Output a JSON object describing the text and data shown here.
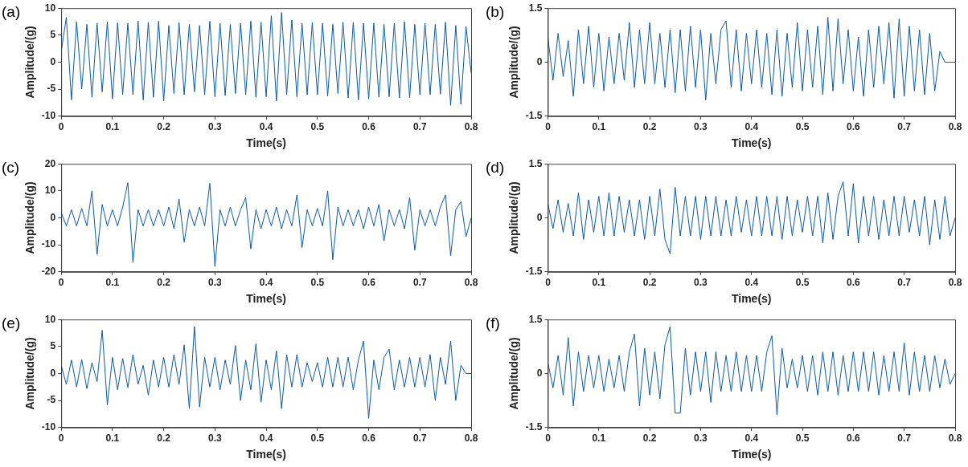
{
  "chart_data": [
    {
      "type": "line",
      "title": "(a)",
      "xlabel": "Time(s)",
      "ylabel": "Amplitude/(g)",
      "marker": "none",
      "xlim": [
        0,
        0.8
      ],
      "xticks": [
        0,
        0.1,
        0.2,
        0.3,
        0.4,
        0.5,
        0.6,
        0.7,
        0.8
      ],
      "ylim": [
        -10,
        10
      ],
      "yticks": [
        -10,
        -5,
        0,
        5,
        10
      ],
      "x": [
        0,
        0.01,
        0.02,
        0.03,
        0.04,
        0.05,
        0.06,
        0.07,
        0.08,
        0.09,
        0.1,
        0.11,
        0.12,
        0.13,
        0.14,
        0.15,
        0.16,
        0.17,
        0.18,
        0.19,
        0.2,
        0.21,
        0.22,
        0.23,
        0.24,
        0.25,
        0.26,
        0.27,
        0.28,
        0.29,
        0.3,
        0.31,
        0.32,
        0.33,
        0.34,
        0.35,
        0.36,
        0.37,
        0.38,
        0.39,
        0.4,
        0.41,
        0.42,
        0.43,
        0.44,
        0.45,
        0.46,
        0.47,
        0.48,
        0.49,
        0.5,
        0.51,
        0.52,
        0.53,
        0.54,
        0.55,
        0.56,
        0.57,
        0.58,
        0.59,
        0.6,
        0.61,
        0.62,
        0.63,
        0.64,
        0.65,
        0.66,
        0.67,
        0.68,
        0.69,
        0.7,
        0.71,
        0.72,
        0.73,
        0.74,
        0.75,
        0.76,
        0.77,
        0.78,
        0.79,
        0.8
      ],
      "series": [
        {
          "color": "#0b5aa6",
          "values": [
            2,
            8.3,
            -7,
            7.5,
            -5,
            7,
            -6.5,
            7.2,
            -5.5,
            7.5,
            -6.8,
            7.3,
            -6,
            7.2,
            -6,
            7.6,
            -7,
            7.4,
            -6.5,
            7.6,
            -7.2,
            6.8,
            -5.8,
            7.3,
            -6,
            7,
            -5.5,
            6.8,
            -6,
            7.6,
            -6.4,
            7.2,
            -6.2,
            7,
            -5.8,
            7.2,
            -6,
            7.6,
            -6.5,
            7.4,
            -6.4,
            8.6,
            -7.2,
            9.2,
            -6,
            7.8,
            -6.4,
            7.2,
            -6,
            7.3,
            -6,
            7.2,
            -6.3,
            7,
            -5.8,
            7.4,
            -6.6,
            7.4,
            -7,
            7.2,
            -6.8,
            7.2,
            -6.5,
            7,
            -6.4,
            7.2,
            -6.6,
            7.5,
            -6.6,
            7,
            -6,
            7.2,
            -6,
            7,
            -5.9,
            7.4,
            -8,
            6.8,
            -7.8,
            6.6,
            -2
          ]
        }
      ]
    },
    {
      "type": "line",
      "title": "(b)",
      "xlabel": "Time(s)",
      "ylabel": "Amplitude/(g)",
      "marker": "none",
      "xlim": [
        0,
        0.8
      ],
      "xticks": [
        0,
        0.1,
        0.2,
        0.3,
        0.4,
        0.5,
        0.6,
        0.7,
        0.8
      ],
      "ylim": [
        -1.5,
        1.5
      ],
      "yticks": [
        -1.5,
        0,
        1.5
      ],
      "x": [
        0,
        0.01,
        0.02,
        0.03,
        0.04,
        0.05,
        0.06,
        0.07,
        0.08,
        0.09,
        0.1,
        0.11,
        0.12,
        0.13,
        0.14,
        0.15,
        0.16,
        0.17,
        0.18,
        0.19,
        0.2,
        0.21,
        0.22,
        0.23,
        0.24,
        0.25,
        0.26,
        0.27,
        0.28,
        0.29,
        0.3,
        0.31,
        0.32,
        0.33,
        0.34,
        0.35,
        0.36,
        0.37,
        0.38,
        0.39,
        0.4,
        0.41,
        0.42,
        0.43,
        0.44,
        0.45,
        0.46,
        0.47,
        0.48,
        0.49,
        0.5,
        0.51,
        0.52,
        0.53,
        0.54,
        0.55,
        0.56,
        0.57,
        0.58,
        0.59,
        0.6,
        0.61,
        0.62,
        0.63,
        0.64,
        0.65,
        0.66,
        0.67,
        0.68,
        0.69,
        0.7,
        0.71,
        0.72,
        0.73,
        0.74,
        0.75,
        0.76,
        0.77,
        0.78,
        0.79,
        0.8
      ],
      "series": [
        {
          "color": "#0b5aa6",
          "values": [
            0.7,
            -0.5,
            0.8,
            -0.4,
            0.6,
            -0.95,
            0.9,
            -0.6,
            1.0,
            -0.7,
            0.8,
            -0.8,
            0.7,
            -0.6,
            0.8,
            -0.5,
            1.1,
            -0.7,
            0.9,
            -0.6,
            1.1,
            -0.6,
            0.8,
            -0.7,
            0.9,
            -0.85,
            0.9,
            -0.8,
            1.0,
            -0.7,
            0.9,
            -1.05,
            0.8,
            -0.6,
            0.9,
            1.15,
            -0.7,
            0.9,
            -0.8,
            0.8,
            -0.6,
            0.9,
            -0.7,
            0.8,
            -0.9,
            0.9,
            -0.95,
            0.8,
            -0.7,
            1.1,
            -0.8,
            0.9,
            -0.7,
            1.0,
            -0.9,
            1.25,
            -0.8,
            1.2,
            -0.6,
            0.9,
            -0.8,
            0.7,
            -0.95,
            0.9,
            -0.7,
            1.0,
            -0.6,
            1.1,
            -1.0,
            1.2,
            -0.95,
            1.0,
            -0.8,
            0.9,
            -0.9,
            0.8,
            -0.8,
            0.3,
            0,
            0,
            0
          ]
        }
      ]
    },
    {
      "type": "line",
      "title": "(c)",
      "xlabel": "Time(s)",
      "ylabel": "Amplitude/(g)",
      "marker": "none",
      "xlim": [
        0,
        0.8
      ],
      "xticks": [
        0,
        0.1,
        0.2,
        0.3,
        0.4,
        0.5,
        0.6,
        0.7,
        0.8
      ],
      "ylim": [
        -20,
        20
      ],
      "yticks": [
        -20,
        -10,
        0,
        10,
        20
      ],
      "x": [
        0,
        0.01,
        0.02,
        0.03,
        0.04,
        0.05,
        0.06,
        0.07,
        0.08,
        0.09,
        0.1,
        0.11,
        0.12,
        0.13,
        0.14,
        0.15,
        0.16,
        0.17,
        0.18,
        0.19,
        0.2,
        0.21,
        0.22,
        0.23,
        0.24,
        0.25,
        0.26,
        0.27,
        0.28,
        0.29,
        0.3,
        0.31,
        0.32,
        0.33,
        0.34,
        0.35,
        0.36,
        0.37,
        0.38,
        0.39,
        0.4,
        0.41,
        0.42,
        0.43,
        0.44,
        0.45,
        0.46,
        0.47,
        0.48,
        0.49,
        0.5,
        0.51,
        0.52,
        0.53,
        0.54,
        0.55,
        0.56,
        0.57,
        0.58,
        0.59,
        0.6,
        0.61,
        0.62,
        0.63,
        0.64,
        0.65,
        0.66,
        0.67,
        0.68,
        0.69,
        0.7,
        0.71,
        0.72,
        0.73,
        0.74,
        0.75,
        0.76,
        0.77,
        0.78,
        0.79,
        0.8
      ],
      "series": [
        {
          "color": "#0b5aa6",
          "values": [
            2,
            -3,
            3,
            -3,
            3.5,
            -3,
            10,
            -13.5,
            5,
            -3,
            3,
            -3,
            4,
            13,
            -16.5,
            3,
            -3,
            3,
            -3,
            3,
            -3,
            4,
            -4,
            7,
            -9,
            3,
            -3,
            4,
            -3,
            12.8,
            -18,
            3,
            -3,
            4,
            -3,
            3,
            7.5,
            -11.5,
            3,
            -4,
            3,
            -3,
            4,
            -4,
            3,
            -3,
            8.5,
            -11,
            3,
            -3,
            3.5,
            -3,
            10,
            -15.5,
            4,
            -3,
            3,
            -3,
            3,
            -4,
            4,
            -3,
            5,
            -8.5,
            3,
            -3,
            3,
            -4,
            7.5,
            -12,
            3,
            -3,
            3,
            -3,
            4,
            8.5,
            -14,
            3,
            6,
            -7,
            0
          ]
        }
      ]
    },
    {
      "type": "line",
      "title": "(d)",
      "xlabel": "Time(s)",
      "ylabel": "Amplitude/(g)",
      "marker": "none",
      "xlim": [
        0,
        0.8
      ],
      "xticks": [
        0,
        0.1,
        0.2,
        0.3,
        0.4,
        0.5,
        0.6,
        0.7,
        0.8
      ],
      "ylim": [
        -1.5,
        1.5
      ],
      "yticks": [
        -1.5,
        0,
        1.5
      ],
      "x": [
        0,
        0.01,
        0.02,
        0.03,
        0.04,
        0.05,
        0.06,
        0.07,
        0.08,
        0.09,
        0.1,
        0.11,
        0.12,
        0.13,
        0.14,
        0.15,
        0.16,
        0.17,
        0.18,
        0.19,
        0.2,
        0.21,
        0.22,
        0.23,
        0.24,
        0.25,
        0.26,
        0.27,
        0.28,
        0.29,
        0.3,
        0.31,
        0.32,
        0.33,
        0.34,
        0.35,
        0.36,
        0.37,
        0.38,
        0.39,
        0.4,
        0.41,
        0.42,
        0.43,
        0.44,
        0.45,
        0.46,
        0.47,
        0.48,
        0.49,
        0.5,
        0.51,
        0.52,
        0.53,
        0.54,
        0.55,
        0.56,
        0.57,
        0.58,
        0.59,
        0.6,
        0.61,
        0.62,
        0.63,
        0.64,
        0.65,
        0.66,
        0.67,
        0.68,
        0.69,
        0.7,
        0.71,
        0.72,
        0.73,
        0.74,
        0.75,
        0.76,
        0.77,
        0.78,
        0.79,
        0.8
      ],
      "series": [
        {
          "color": "#0b5aa6",
          "values": [
            0.4,
            -0.3,
            0.5,
            -0.4,
            0.4,
            -0.5,
            0.7,
            -0.6,
            0.5,
            -0.4,
            0.6,
            -0.5,
            0.7,
            -0.5,
            0.6,
            -0.4,
            0.5,
            -0.5,
            0.5,
            -0.6,
            0.6,
            -0.5,
            0.8,
            -0.6,
            -1.0,
            0.85,
            -0.5,
            0.6,
            -0.5,
            0.6,
            -0.6,
            0.6,
            -0.5,
            0.6,
            -0.5,
            0.5,
            -0.5,
            0.6,
            -0.4,
            0.5,
            -0.5,
            0.6,
            -0.5,
            0.6,
            -0.5,
            0.6,
            -0.6,
            0.6,
            -0.5,
            0.5,
            -0.4,
            0.6,
            -0.5,
            0.6,
            -0.7,
            0.7,
            -0.6,
            0.6,
            1.0,
            -0.5,
            0.95,
            -0.7,
            0.6,
            -0.5,
            0.6,
            -0.6,
            0.5,
            -0.5,
            0.6,
            -0.5,
            0.6,
            -0.4,
            0.5,
            -0.5,
            0.6,
            -0.75,
            0.5,
            -0.6,
            0.6,
            -0.5,
            0
          ]
        }
      ]
    },
    {
      "type": "line",
      "title": "(e)",
      "xlabel": "Time(s)",
      "ylabel": "Amplitude/(g)",
      "marker": "none",
      "xlim": [
        0,
        0.8
      ],
      "xticks": [
        0,
        0.1,
        0.2,
        0.3,
        0.4,
        0.5,
        0.6,
        0.7,
        0.8
      ],
      "ylim": [
        -10,
        10
      ],
      "yticks": [
        -10,
        -5,
        0,
        5,
        10
      ],
      "x": [
        0,
        0.01,
        0.02,
        0.03,
        0.04,
        0.05,
        0.06,
        0.07,
        0.08,
        0.09,
        0.1,
        0.11,
        0.12,
        0.13,
        0.14,
        0.15,
        0.16,
        0.17,
        0.18,
        0.19,
        0.2,
        0.21,
        0.22,
        0.23,
        0.24,
        0.25,
        0.26,
        0.27,
        0.28,
        0.29,
        0.3,
        0.31,
        0.32,
        0.33,
        0.34,
        0.35,
        0.36,
        0.37,
        0.38,
        0.39,
        0.4,
        0.41,
        0.42,
        0.43,
        0.44,
        0.45,
        0.46,
        0.47,
        0.48,
        0.49,
        0.5,
        0.51,
        0.52,
        0.53,
        0.54,
        0.55,
        0.56,
        0.57,
        0.58,
        0.59,
        0.6,
        0.61,
        0.62,
        0.63,
        0.64,
        0.65,
        0.66,
        0.67,
        0.68,
        0.69,
        0.7,
        0.71,
        0.72,
        0.73,
        0.74,
        0.75,
        0.76,
        0.77,
        0.78,
        0.79,
        0.8
      ],
      "series": [
        {
          "color": "#0b5aa6",
          "values": [
            1.5,
            -2,
            2.5,
            -2.5,
            2.6,
            -2.8,
            2,
            -1.5,
            8,
            -5.8,
            3,
            -3,
            2.8,
            -2.6,
            3.5,
            -2,
            1.5,
            -4,
            2.5,
            -2.5,
            3,
            -2.5,
            3.5,
            -2,
            5.3,
            -6.5,
            8.7,
            -6.2,
            3,
            -2.5,
            3,
            -3,
            2.5,
            -2,
            5.2,
            -5,
            2.5,
            -3,
            5.5,
            -5.3,
            2.5,
            -3,
            4.2,
            -6.5,
            3.5,
            -2.5,
            3.5,
            -2.5,
            2,
            -1.5,
            2,
            -2.5,
            3,
            -2.5,
            3,
            -2.5,
            3,
            -3,
            2.5,
            6,
            -8.3,
            2.5,
            -3,
            3,
            4.5,
            -3,
            2.5,
            -2.5,
            3,
            -2.5,
            3,
            -2.5,
            3.5,
            -5,
            3,
            -2,
            6,
            -5,
            1.5,
            0,
            0
          ]
        }
      ]
    },
    {
      "type": "line",
      "title": "(f)",
      "xlabel": "Time(s)",
      "ylabel": "Amplitude/(g)",
      "marker": "none",
      "xlim": [
        0,
        0.8
      ],
      "xticks": [
        0,
        0.1,
        0.2,
        0.3,
        0.4,
        0.5,
        0.6,
        0.7,
        0.8
      ],
      "ylim": [
        -1.5,
        1.5
      ],
      "yticks": [
        -1.5,
        0,
        1.5
      ],
      "x": [
        0,
        0.01,
        0.02,
        0.03,
        0.04,
        0.05,
        0.06,
        0.07,
        0.08,
        0.09,
        0.1,
        0.11,
        0.12,
        0.13,
        0.14,
        0.15,
        0.16,
        0.17,
        0.18,
        0.19,
        0.2,
        0.21,
        0.22,
        0.23,
        0.24,
        0.25,
        0.26,
        0.27,
        0.28,
        0.29,
        0.3,
        0.31,
        0.32,
        0.33,
        0.34,
        0.35,
        0.36,
        0.37,
        0.38,
        0.39,
        0.4,
        0.41,
        0.42,
        0.43,
        0.44,
        0.45,
        0.46,
        0.47,
        0.48,
        0.49,
        0.5,
        0.51,
        0.52,
        0.53,
        0.54,
        0.55,
        0.56,
        0.57,
        0.58,
        0.59,
        0.6,
        0.61,
        0.62,
        0.63,
        0.64,
        0.65,
        0.66,
        0.67,
        0.68,
        0.69,
        0.7,
        0.71,
        0.72,
        0.73,
        0.74,
        0.75,
        0.76,
        0.77,
        0.78,
        0.79,
        0.8
      ],
      "series": [
        {
          "color": "#0b5aa6",
          "values": [
            0.3,
            -0.4,
            0.5,
            -0.6,
            1.0,
            -0.9,
            0.6,
            -0.5,
            0.5,
            -0.4,
            0.5,
            -0.5,
            0.4,
            -0.4,
            0.5,
            -0.5,
            0.6,
            1.1,
            -0.9,
            0.7,
            -0.6,
            0.6,
            -0.7,
            0.8,
            1.3,
            -1.1,
            -1.1,
            0.7,
            -0.6,
            0.6,
            -0.5,
            0.6,
            -0.8,
            0.6,
            -0.5,
            0.5,
            -0.5,
            0.6,
            -0.5,
            0.5,
            -0.5,
            0.5,
            -0.5,
            0.6,
            1.05,
            -1.15,
            0.7,
            -0.4,
            0.4,
            -0.4,
            0.5,
            -0.5,
            0.5,
            -0.6,
            0.6,
            -0.5,
            0.6,
            -0.6,
            0.5,
            -0.5,
            0.6,
            -0.5,
            0.6,
            -0.5,
            0.6,
            -0.6,
            0.5,
            -0.5,
            0.6,
            -0.5,
            0.85,
            -0.6,
            0.6,
            -0.5,
            0.5,
            -0.5,
            0.5,
            -0.4,
            0.4,
            -0.3,
            0
          ]
        }
      ]
    }
  ]
}
